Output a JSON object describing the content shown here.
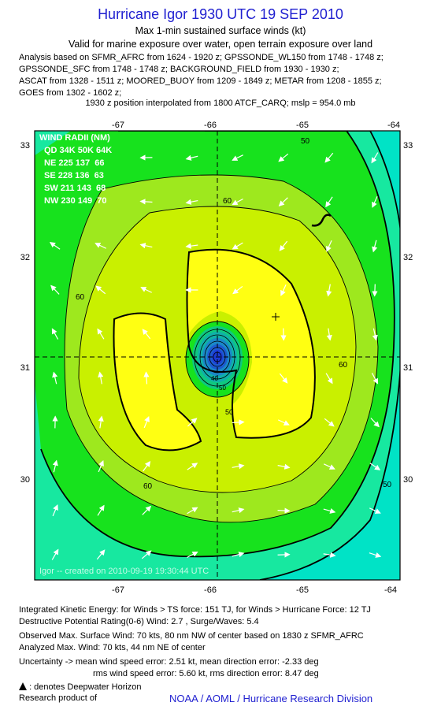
{
  "header": {
    "title": "Hurricane Igor 1930 UTC 19 SEP 2010",
    "subtitle1": "Max 1-min sustained surface winds (kt)",
    "subtitle2": "Valid for marine exposure over water, open terrain exposure over land",
    "analysis_lines": [
      "Analysis based on SFMR_AFRC from 1624 - 1920 z; GPSSONDE_WL150 from 1748 - 1748 z;",
      "GPSSONDE_SFC from 1748 - 1748 z; BACKGROUND_FIELD from 1930 - 1930 z;",
      "ASCAT from 1328 - 1511 z; MOORED_BUOY from 1209 - 1849 z; METAR from 1208 - 1855 z;",
      "GOES from 1302 - 1602 z;"
    ],
    "position_line": "1930 z position interpolated from 1800 ATCF_CARQ; mslp = 954.0 mb"
  },
  "map": {
    "lon_ticks": [
      "-67",
      "-66",
      "-65",
      "-64"
    ],
    "lat_ticks": [
      "33",
      "32",
      "31",
      "30"
    ],
    "contour_labels": [
      "60",
      "60",
      "60",
      "60",
      "50",
      "50",
      "40",
      "50",
      "50"
    ],
    "wind_radii": {
      "header": "WIND RADII (NM)",
      "columns": "QD 34K 50K 64K",
      "rows": [
        "NE 225 137  66",
        "SE 228 136  63",
        "SW 211 143  68",
        "NW 230 149  70"
      ]
    },
    "credit": "Igor -- created on 2010-09-19 19:30:44 UTC",
    "colors": {
      "frame": "#000000",
      "cyan": "#00e3c6",
      "mint": "#17e8a0",
      "green": "#17e21d",
      "lightgreen": "#9ee81e",
      "lime": "#c9f000",
      "yellow": "#ffff12",
      "eye_blue": "#1c3bd6"
    }
  },
  "footer": {
    "ike": "Integrated Kinetic Energy:  for Winds > TS force: 151 TJ,  for Winds > Hurricane Force: 12 TJ",
    "dpr": "Destructive Potential Rating(0-6)   Wind: 2.7 , Surge/Waves: 5.4",
    "obs": "Observed Max. Surface Wind: 70 kts, 80 nm NW of center based on 1830 z SFMR_AFRC",
    "analyzed": "Analyzed Max. Wind: 70 kts, 44 nm NE of center",
    "unc1": "Uncertainty -> mean wind speed error: 2.51 kt,   mean direction error:  -2.33 deg",
    "unc2": "rms wind speed error: 5.60 kt,   rms direction error: 8.47 deg",
    "legend": ": denotes Deepwater Horizon",
    "research": "Research product of",
    "org": "NOAA / AOML / Hurricane Research Division"
  }
}
